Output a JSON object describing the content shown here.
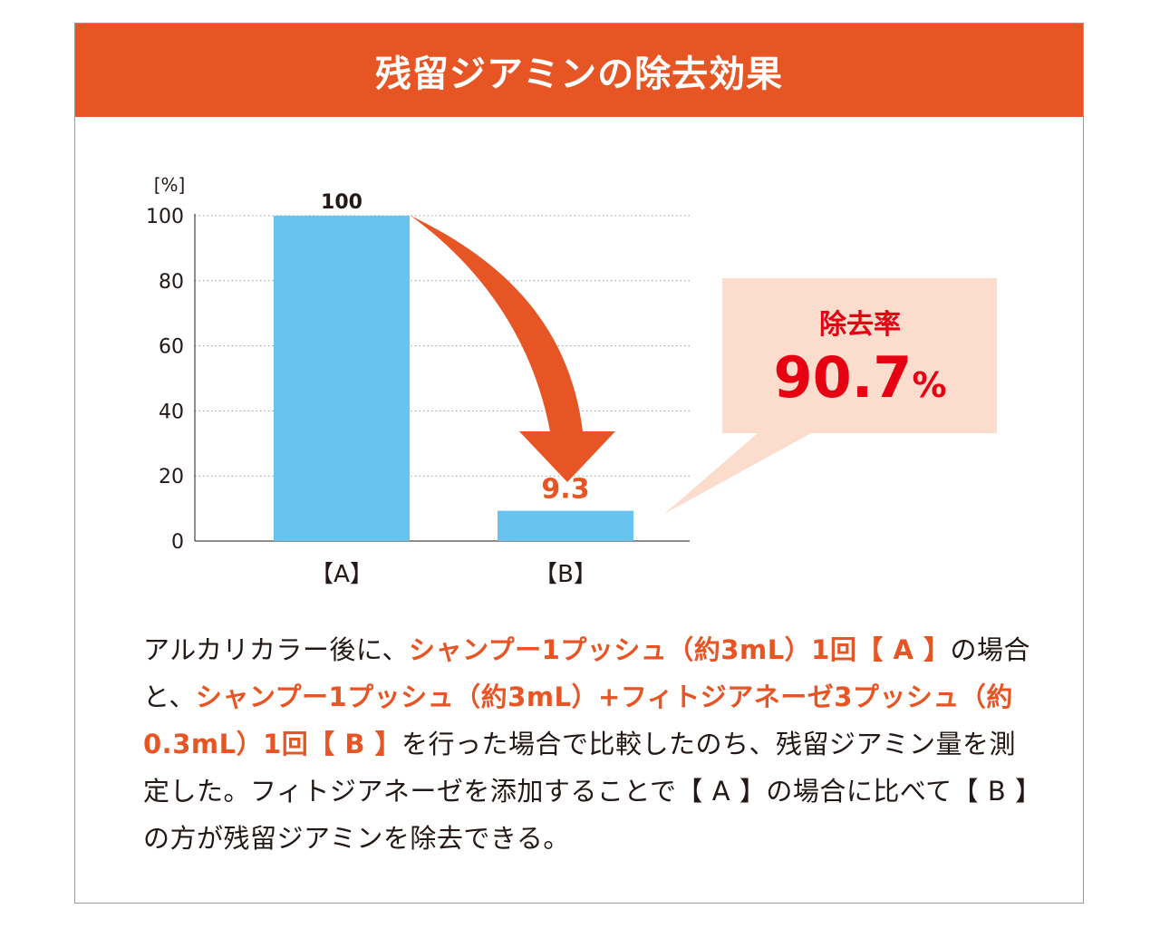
{
  "title": "残留ジアミンの除去効果",
  "colors": {
    "header": "#e85524",
    "bar": "#68c3ee",
    "arrow": "#e85524",
    "callout_bg": "#fbdccd",
    "callout_text": "#e60012",
    "highlight": "#e85524",
    "text": "#231815"
  },
  "chart_data": {
    "type": "bar",
    "categories": [
      "【A】",
      "【B】"
    ],
    "values": [
      100,
      9.3
    ],
    "value_labels": [
      "100",
      "9.3"
    ],
    "unit_label": "[%]",
    "yticks": [
      0,
      20,
      40,
      60,
      80,
      100
    ],
    "ylim": [
      0,
      100
    ],
    "grid": "dotted horizontal",
    "callout": {
      "label": "除去率",
      "value": "90.7",
      "unit": "%"
    }
  },
  "description": [
    {
      "text": "アルカリカラー後に、",
      "hl": false
    },
    {
      "text": "シャンプー1プッシュ（約3mL）1回【 A 】",
      "hl": true
    },
    {
      "text": "の場合と、",
      "hl": false
    },
    {
      "text": "シャンプー1プッシュ（約3mL）+フィトジアネーゼ3プッシュ（約0.3mL）1回【 B 】",
      "hl": true
    },
    {
      "text": "を行った場合で比較したのち、残留ジアミン量を測定した。フィトジアネーゼを添加することで【 A 】の場合に比べて【 B 】の方が残留ジアミンを除去できる。",
      "hl": false
    }
  ]
}
